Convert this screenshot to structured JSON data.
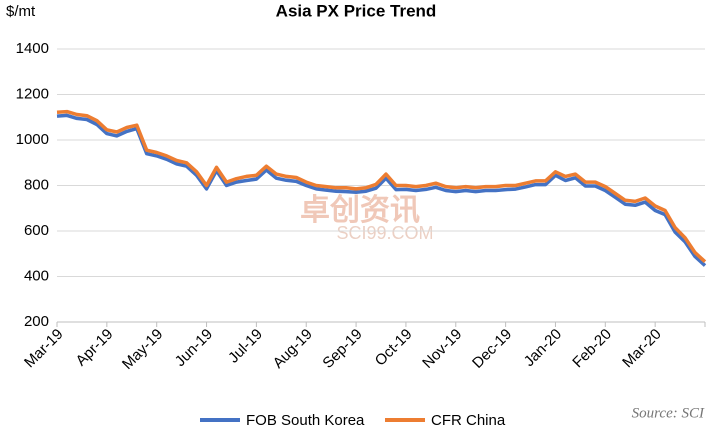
{
  "chart_data": {
    "type": "line",
    "title": "Asia PX Price Trend",
    "y_label": "$/mt",
    "source": "Source: SCI",
    "watermark": [
      "卓创资讯",
      "SCI99.COM"
    ],
    "categories": [
      "Mar-19",
      null,
      null,
      null,
      null,
      "Apr-19",
      null,
      null,
      null,
      null,
      "May-19",
      null,
      null,
      null,
      null,
      "Jun-19",
      null,
      null,
      null,
      null,
      "Jul-19",
      null,
      null,
      null,
      null,
      "Aug-19",
      null,
      null,
      null,
      null,
      "Sep-19",
      null,
      null,
      null,
      null,
      "Oct-19",
      null,
      null,
      null,
      null,
      "Nov-19",
      null,
      null,
      null,
      null,
      "Dec-19",
      null,
      null,
      null,
      null,
      "Jan-20",
      null,
      null,
      null,
      null,
      "Feb-20",
      null,
      null,
      null,
      null,
      "Mar-20",
      null,
      null,
      null,
      null,
      null
    ],
    "series": [
      {
        "name": "FOB South Korea",
        "color": "#4472c4",
        "values": [
          1105,
          1108,
          1095,
          1090,
          1068,
          1028,
          1018,
          1038,
          1050,
          940,
          930,
          915,
          895,
          885,
          845,
          785,
          865,
          800,
          815,
          822,
          828,
          868,
          832,
          823,
          818,
          800,
          785,
          780,
          775,
          773,
          770,
          775,
          788,
          832,
          782,
          783,
          778,
          783,
          792,
          778,
          773,
          778,
          773,
          778,
          778,
          782,
          784,
          794,
          804,
          804,
          845,
          822,
          834,
          798,
          798,
          778,
          748,
          718,
          713,
          727,
          690,
          672,
          595,
          552,
          488,
          448
        ]
      },
      {
        "name": "CFR China",
        "color": "#ed7d31",
        "values": [
          1122,
          1125,
          1112,
          1107,
          1085,
          1045,
          1035,
          1055,
          1065,
          955,
          945,
          930,
          910,
          900,
          860,
          800,
          880,
          815,
          830,
          840,
          845,
          885,
          850,
          840,
          835,
          815,
          800,
          795,
          790,
          790,
          785,
          790,
          805,
          850,
          800,
          800,
          795,
          800,
          810,
          795,
          790,
          795,
          790,
          795,
          795,
          800,
          800,
          810,
          820,
          820,
          860,
          840,
          850,
          815,
          815,
          795,
          765,
          735,
          730,
          745,
          710,
          690,
          615,
          570,
          505,
          465
        ]
      }
    ],
    "ylim": [
      200,
      1400
    ],
    "yticks": [
      200,
      400,
      600,
      800,
      1000,
      1200,
      1400
    ],
    "grid": true,
    "legend": "bottom"
  }
}
